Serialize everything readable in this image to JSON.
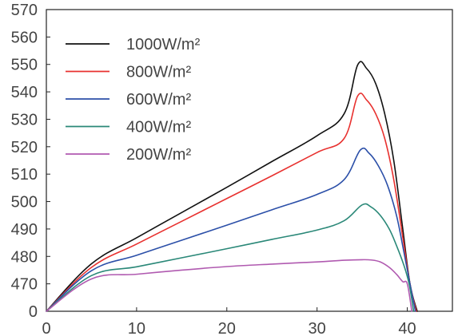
{
  "chart_data": {
    "type": "line",
    "title": "",
    "xlabel": "",
    "ylabel": "",
    "xlim": [
      0,
      45
    ],
    "ylim": [
      0,
      570
    ],
    "y_axis_break": {
      "from": 0,
      "to": 470
    },
    "x_ticks": [
      "0",
      "10",
      "20",
      "30",
      "40"
    ],
    "x_tick_values": [
      0,
      10,
      20,
      30,
      40
    ],
    "y_ticks": [
      "0",
      "470",
      "480",
      "490",
      "500",
      "510",
      "520",
      "530",
      "540",
      "550",
      "560",
      "570"
    ],
    "y_tick_values": [
      0,
      470,
      480,
      490,
      500,
      510,
      520,
      530,
      540,
      550,
      560,
      570
    ],
    "grid": false,
    "legend_position": "top-left",
    "series": [
      {
        "name": "1000W/m²",
        "color": "#111111",
        "x": [
          0,
          5,
          10,
          15,
          20,
          25,
          30,
          33,
          34.5,
          35.5,
          36.5,
          37.5,
          38.5,
          39.5,
          40.3,
          41.1
        ],
        "y": [
          0,
          477.3,
          486.8,
          496.0,
          505.2,
          514.6,
          524.0,
          532.0,
          549.8,
          548.5,
          543.0,
          532.0,
          515.0,
          490.0,
          470.0,
          0
        ]
      },
      {
        "name": "800W/m²",
        "color": "#e8312f",
        "x": [
          0,
          5,
          10,
          15,
          20,
          25,
          30,
          33,
          34.5,
          35.5,
          36.5,
          37.5,
          38.5,
          39.5,
          40.3,
          41.0
        ],
        "y": [
          0,
          476.0,
          484.5,
          492.8,
          501.1,
          509.4,
          517.9,
          523.0,
          538.5,
          537.0,
          532.0,
          523.0,
          508.0,
          487.0,
          470.0,
          0
        ]
      },
      {
        "name": "600W/m²",
        "color": "#2b4fa8",
        "x": [
          0,
          5,
          10,
          15,
          20,
          25,
          30,
          33,
          34.8,
          35.8,
          36.8,
          37.8,
          38.8,
          39.6,
          40.3,
          40.9
        ],
        "y": [
          0,
          474.8,
          480.4,
          485.9,
          491.4,
          497.0,
          502.6,
          508.0,
          518.8,
          517.5,
          513.0,
          506.0,
          495.0,
          482.0,
          470.0,
          0
        ]
      },
      {
        "name": "400W/m²",
        "color": "#2a8878",
        "x": [
          0,
          5,
          10,
          15,
          20,
          25,
          30,
          33,
          35.0,
          36.0,
          37.0,
          38.0,
          38.8,
          39.6,
          40.2,
          40.7
        ],
        "y": [
          0,
          473.0,
          476.2,
          479.5,
          482.8,
          486.2,
          489.6,
          493.0,
          498.8,
          498.0,
          495.0,
          490.0,
          484.0,
          477.0,
          470.0,
          0
        ]
      },
      {
        "name": "200W/m²",
        "color": "#b05ab0",
        "x": [
          0,
          5,
          10,
          15,
          20,
          25,
          30,
          33,
          35.0,
          36.0,
          37.0,
          38.0,
          38.8,
          39.5,
          40.0,
          40.5
        ],
        "y": [
          0,
          471.8,
          473.5,
          475.0,
          476.3,
          477.2,
          478.0,
          478.6,
          478.8,
          478.7,
          478.0,
          476.0,
          473.5,
          470.8,
          470.0,
          0
        ]
      }
    ]
  }
}
